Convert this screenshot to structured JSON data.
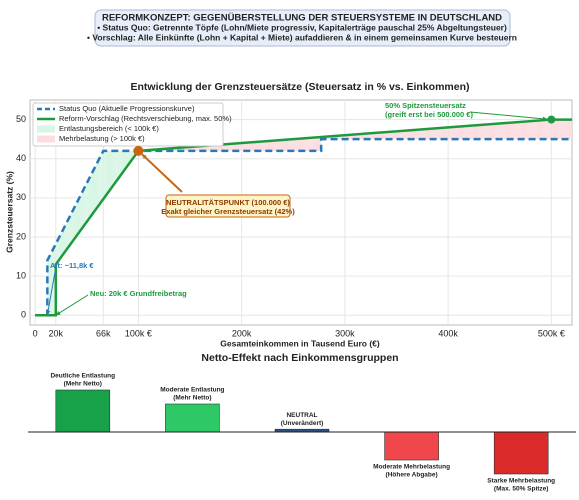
{
  "header": {
    "title": "REFORMKONZEPT: GEGENÜBERSTELLUNG DER STEUERSYSTEME IN DEUTSCHLAND",
    "lines": [
      "• Status Quo: Getrennte Töpfe (Lohn/Miete progressiv, Kapitalerträge pauschal 25% Abgeltungsteuer)",
      "• Vorschlag: Alle Einkünfte (Lohn + Kapital + Miete) aufaddieren & in einem gemeinsamen Kurve besteuern"
    ]
  },
  "chart_data": [
    {
      "type": "line",
      "title": "Entwicklung der Grenzsteuersätze (Steuersatz in % vs. Einkommen)",
      "xlabel": "Gesamteinkommen in Tausend Euro (€)",
      "ylabel": "Grenzsteuersatz (%)",
      "xlim": [
        -5,
        520
      ],
      "ylim": [
        -2.5,
        55
      ],
      "xticks": [
        0,
        {
          "value": 20,
          "label": "20k"
        },
        {
          "value": 66,
          "label": "66k"
        },
        {
          "value": 100,
          "label": "100k €"
        },
        {
          "value": 200,
          "label": "200k"
        },
        {
          "value": 300,
          "label": "300k"
        },
        {
          "value": 400,
          "label": "400k"
        },
        {
          "value": 500,
          "label": "500k €"
        }
      ],
      "yticks": [
        0,
        10,
        20,
        30,
        40,
        50
      ],
      "grid": true,
      "legend": "upper left",
      "series": [
        {
          "name": "Status Quo (Aktuelle Progressionskurve)",
          "color": "#2a78b8",
          "dashed": true,
          "x": [
            0,
            11.8,
            11.8,
            66,
            277,
            277,
            520
          ],
          "values": [
            0,
            0,
            14,
            42,
            42,
            45,
            45
          ]
        },
        {
          "name": "Reform-Vorschlag (Rechtsverschiebung, max. 50%)",
          "color": "#1e9a3e",
          "dashed": false,
          "x": [
            0,
            20,
            20,
            100,
            500,
            520
          ],
          "values": [
            0,
            0,
            13,
            42,
            50,
            50
          ]
        }
      ],
      "fills": [
        {
          "name": "Entlastungsbereich (< 100k €)",
          "color": "#d8f6e4"
        },
        {
          "name": "Mehrbelastung (> 100k €)",
          "color": "#fbdde0"
        }
      ],
      "annotations": [
        {
          "lines": [
            "NEUTRALITÄTSPUNKT (100.000 €)",
            "Exakt gleicher Grenzsteuersatz (42%)"
          ],
          "x": 100,
          "y": 42,
          "color": "#c8650e"
        },
        {
          "lines": [
            "50% Spitzensteuersatz",
            "(greift erst bei 500.000 €)"
          ],
          "x": 500,
          "y": 50,
          "color": "#1e9a3e"
        },
        {
          "lines": [
            "Alt: ~11,8k €"
          ],
          "x": 11.8,
          "y": 0,
          "color": "#2a78b8"
        },
        {
          "lines": [
            "Neu: 20k € Grundfreibetrag"
          ],
          "x": 20,
          "y": 0,
          "color": "#1e9a3e"
        }
      ]
    },
    {
      "type": "bar",
      "title": "Netto-Effekt nach Einkommensgruppen",
      "categories": [
        [
          "Deutliche Entlastung",
          "(Mehr Netto)"
        ],
        [
          "Moderate Entlastung",
          "(Mehr Netto)"
        ],
        [
          "NEUTRAL",
          "(Unverändert)"
        ],
        [
          "Moderate Mehrbelastung",
          "(Höhere Abgabe)"
        ],
        [
          "Starke Mehrbelastung",
          "(Max. 50% Spitze)"
        ]
      ],
      "values": [
        3,
        2,
        0.2,
        -2,
        -3
      ],
      "colors": [
        "#17a24a",
        "#2ec866",
        "#2b4f86",
        "#ef474c",
        "#da2a2a"
      ]
    }
  ]
}
